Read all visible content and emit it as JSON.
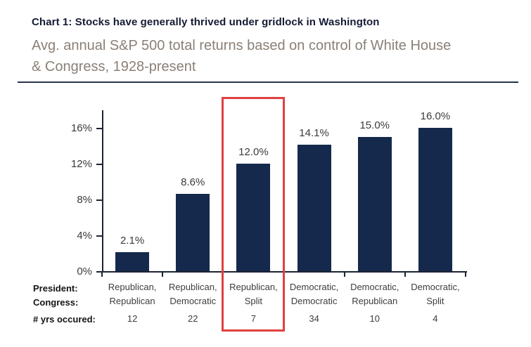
{
  "header": {
    "title": "Chart 1: Stocks have generally thrived under gridlock in Washington",
    "subtitle_line1": "Avg. annual S&P 500 total returns based on control of White House",
    "subtitle_line2": "& Congress, 1928-present"
  },
  "chart_data": {
    "type": "bar",
    "title": "Chart 1: Stocks have generally thrived under gridlock in Washington",
    "subtitle": "Avg. annual S&P 500 total returns based on control of White House & Congress, 1928-present",
    "categories": [
      {
        "president": "Republican,",
        "congress": "Republican",
        "years": "12"
      },
      {
        "president": "Republican,",
        "congress": "Democratic",
        "years": "22"
      },
      {
        "president": "Republican,",
        "congress": "Split",
        "years": "7"
      },
      {
        "president": "Democratic,",
        "congress": "Democratic",
        "years": "34"
      },
      {
        "president": "Democratic,",
        "congress": "Republican",
        "years": "10"
      },
      {
        "president": "Democratic,",
        "congress": "Split",
        "years": "4"
      }
    ],
    "values": [
      2.1,
      8.6,
      12.0,
      14.1,
      15.0,
      16.0
    ],
    "value_labels": [
      "2.1%",
      "8.6%",
      "12.0%",
      "14.1%",
      "15.0%",
      "16.0%"
    ],
    "yticks": {
      "values": [
        0,
        4,
        8,
        12,
        16
      ],
      "labels": [
        "0%",
        "4%",
        "8%",
        "12%",
        "16%"
      ]
    },
    "ylim": [
      0,
      18
    ],
    "grid": false,
    "legend_position": "none",
    "xlabel": "",
    "ylabel": "",
    "row_headers": {
      "president": "President:",
      "congress": "Congress:",
      "years": "# yrs occured:"
    },
    "bar_color": "#14294b",
    "axis_color": "#1c2433",
    "highlight": {
      "index": 2,
      "color": "#e04040"
    }
  }
}
